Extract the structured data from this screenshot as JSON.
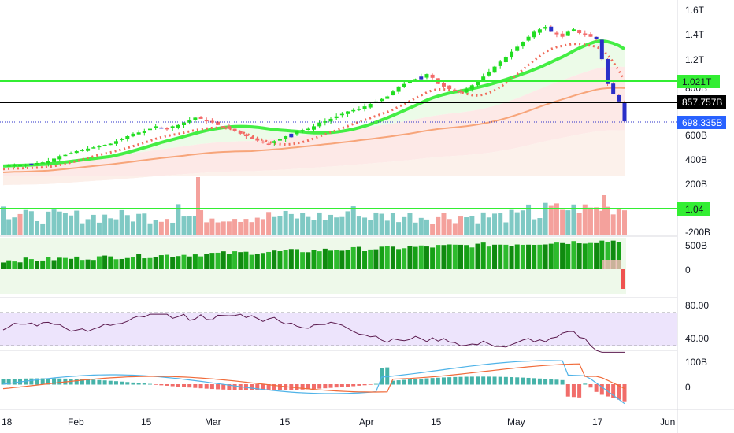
{
  "colors": {
    "up": "#22dd22",
    "down": "#f36a6a",
    "blue_candle": "#2a2fc8",
    "green_line": "#33ee33",
    "black_line": "#000000",
    "blue_tag": "#2962ff",
    "ma_fast": "#f06b5a",
    "ma_mid": "#44ee44",
    "ma_slow": "#f7a57a",
    "vol_up": "#7fc9c4",
    "vol_down": "#f4a19c",
    "obv": "#0f8a0f",
    "rsi_line": "#5b1a4e",
    "rsi_band": "#b388ff",
    "macd": "#4fb3e8",
    "signal": "#f06b3a",
    "hist_up": "#26a69a",
    "hist_down": "#ef5350"
  },
  "price_axis": {
    "ticks": [
      "1.6T",
      "1.4T",
      "1.2T",
      "800B",
      "600B",
      "400B",
      "200B",
      "-200B"
    ],
    "tags": {
      "green": "1.021T",
      "black": "857.757B",
      "blue": "698.335B"
    }
  },
  "volume_tag": "1.04",
  "obv_axis": [
    "500B",
    "0"
  ],
  "rsi_axis": [
    "80.00",
    "40.00"
  ],
  "macd_axis": [
    "100B",
    "0"
  ],
  "time_axis": [
    "18",
    "Feb",
    "15",
    "Mar",
    "15",
    "Apr",
    "15",
    "May",
    "17",
    "Jun"
  ],
  "chart_data": {
    "type": "candlestick",
    "x_labels": [
      "18",
      "Feb",
      "15",
      "Mar",
      "15",
      "Apr",
      "15",
      "May",
      "17",
      "Jun"
    ],
    "horizontal_levels": [
      "1.021T",
      "857.757B",
      "698.335B"
    ],
    "close_series": [
      340,
      345,
      350,
      348,
      352,
      360,
      365,
      370,
      380,
      400,
      420,
      430,
      445,
      460,
      470,
      480,
      490,
      500,
      510,
      520,
      540,
      560,
      580,
      600,
      610,
      620,
      640,
      660,
      650,
      640,
      660,
      670,
      690,
      710,
      730,
      720,
      700,
      690,
      670,
      655,
      640,
      620,
      600,
      580,
      560,
      545,
      530,
      520,
      540,
      560,
      580,
      600,
      620,
      630,
      640,
      660,
      690,
      700,
      720,
      740,
      760,
      780,
      790,
      800,
      820,
      840,
      860,
      880,
      900,
      940,
      980,
      1000,
      1020,
      1040,
      1060,
      1080,
      1050,
      1000,
      980,
      960,
      950,
      940,
      960,
      990,
      1020,
      1060,
      1100,
      1140,
      1180,
      1220,
      1260,
      1300,
      1340,
      1380,
      1420,
      1440,
      1460,
      1420,
      1400,
      1380,
      1420,
      1440,
      1410,
      1400,
      1380,
      1360,
      1200,
      1000,
      920,
      860,
      700
    ]
  }
}
